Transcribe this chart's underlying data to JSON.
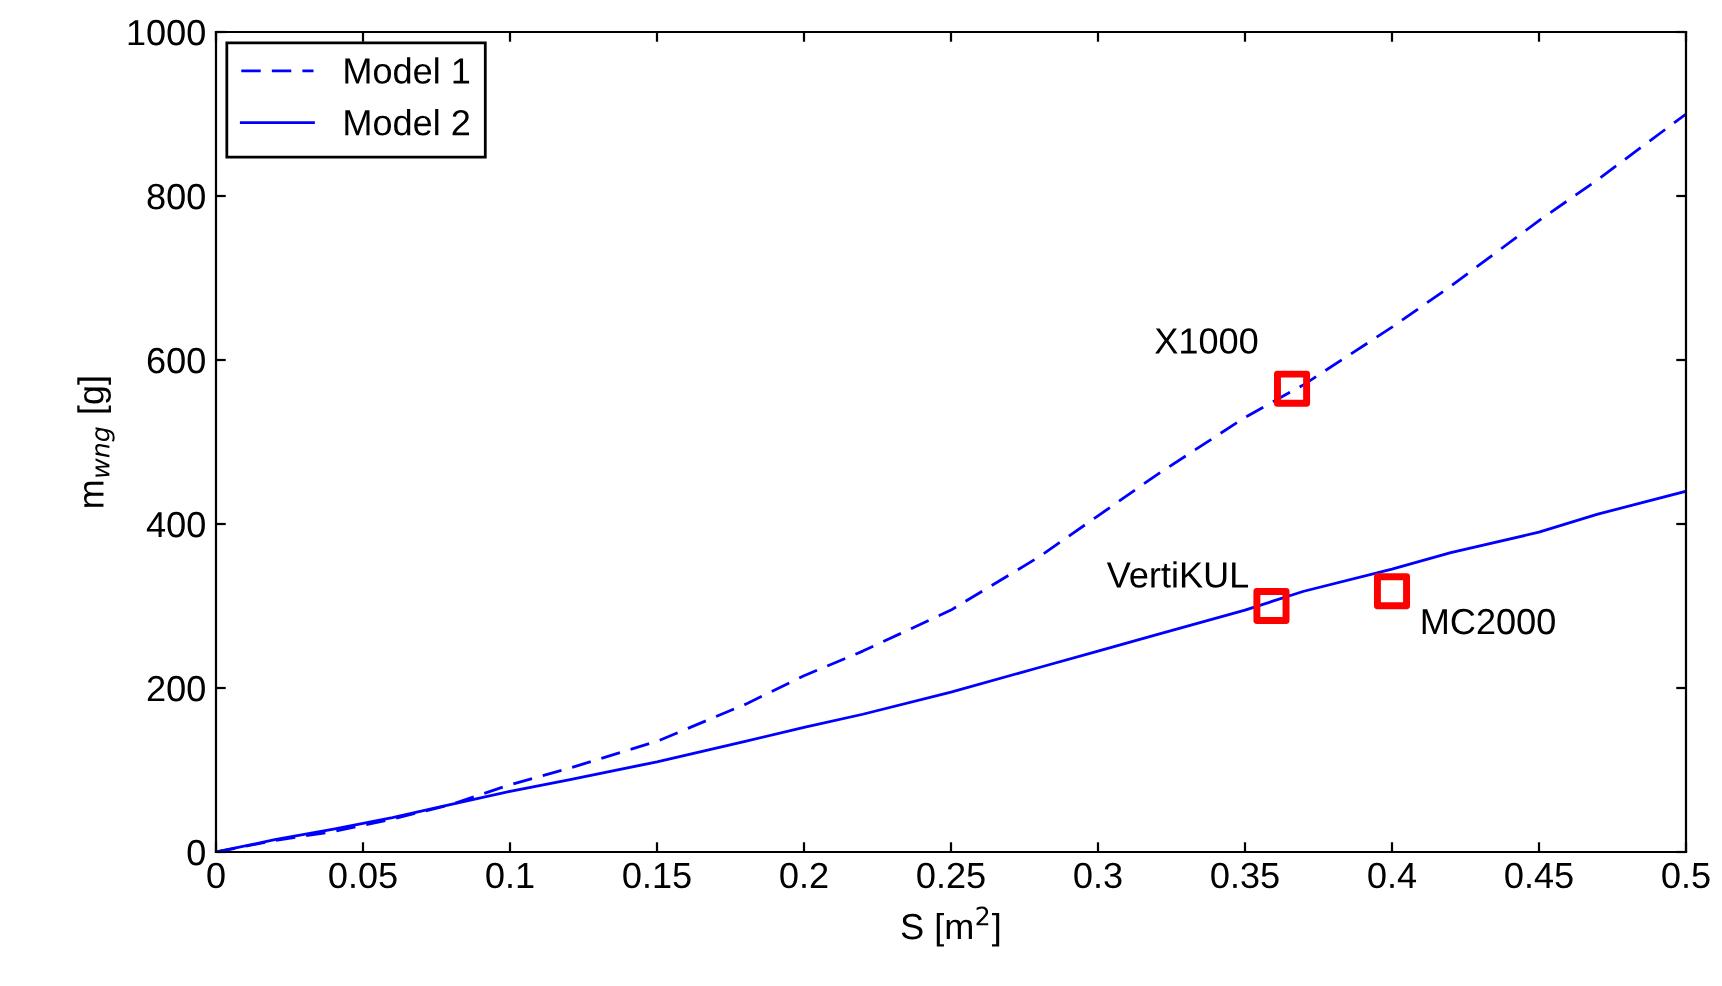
{
  "chart_data": {
    "type": "line",
    "xlabel": "S [m$^{2}$]",
    "ylabel": "m$_{wng}$ [g]",
    "xlim": [
      0,
      0.5
    ],
    "xticks": [
      0,
      0.05,
      0.1,
      0.15,
      0.2,
      0.25,
      0.3,
      0.35,
      0.4,
      0.45,
      0.5
    ],
    "ylim": [
      0,
      1000
    ],
    "yticks": [
      0,
      200,
      400,
      600,
      800,
      1000
    ],
    "grid": false,
    "legend": "top left",
    "series": [
      {
        "name": "Model 1",
        "color": "#0000ff",
        "line_style": "dashed",
        "x": [
          0,
          0.02,
          0.04,
          0.06,
          0.08,
          0.1,
          0.12,
          0.15,
          0.18,
          0.2,
          0.22,
          0.25,
          0.28,
          0.3,
          0.32,
          0.35,
          0.37,
          0.4,
          0.42,
          0.45,
          0.47,
          0.5
        ],
        "values": [
          0,
          14,
          25,
          40,
          58,
          82,
          102,
          135,
          180,
          215,
          245,
          295,
          360,
          410,
          460,
          530,
          570,
          640,
          690,
          770,
          820,
          900
        ]
      },
      {
        "name": "Model 2",
        "color": "#0000ff",
        "line_style": "solid",
        "x": [
          0,
          0.02,
          0.04,
          0.06,
          0.08,
          0.1,
          0.12,
          0.15,
          0.18,
          0.2,
          0.22,
          0.25,
          0.28,
          0.3,
          0.32,
          0.35,
          0.37,
          0.4,
          0.42,
          0.45,
          0.47,
          0.5
        ],
        "values": [
          0,
          15,
          28,
          42,
          58,
          74,
          88,
          110,
          135,
          152,
          168,
          195,
          225,
          245,
          265,
          295,
          318,
          345,
          365,
          390,
          412,
          440
        ]
      },
      {
        "type": "scatter",
        "color": "#ff0000",
        "marker": "square",
        "x": [
          0.366,
          0.359,
          0.4
        ],
        "values": [
          565,
          300,
          318
        ]
      }
    ],
    "annotations": [
      {
        "text": "X1000",
        "x": 0.366,
        "y": 565
      },
      {
        "text": "VertiKUL",
        "x": 0.359,
        "y": 300
      },
      {
        "text": "MC2000",
        "x": 0.4,
        "y": 318
      }
    ]
  }
}
